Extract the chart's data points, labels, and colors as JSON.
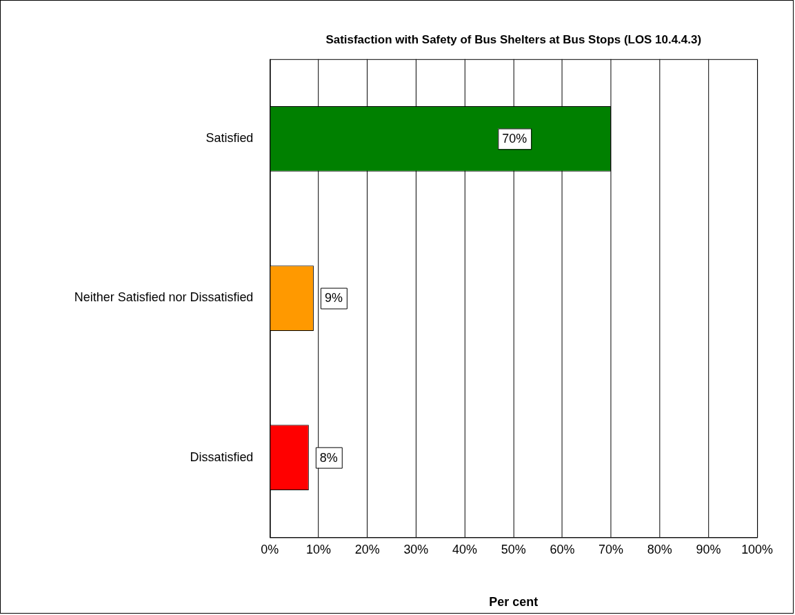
{
  "chart_data": {
    "type": "bar",
    "orientation": "horizontal",
    "title": "Satisfaction with Safety of Bus Shelters at Bus Stops (LOS 10.4.4.3)",
    "xlabel": "Per cent",
    "categories": [
      "Satisfied",
      "Neither Satisfied nor Dissatisfied",
      "Dissatisfied"
    ],
    "values": [
      70,
      9,
      8
    ],
    "colors": [
      "#008000",
      "#ff9900",
      "#ff0000"
    ],
    "value_labels": [
      "70%",
      "9%",
      "8%"
    ],
    "xlim": [
      0,
      100
    ],
    "xticks": [
      {
        "value": 0,
        "label": "0%"
      },
      {
        "value": 10,
        "label": "10%"
      },
      {
        "value": 20,
        "label": "20%"
      },
      {
        "value": 30,
        "label": "30%"
      },
      {
        "value": 40,
        "label": "40%"
      },
      {
        "value": 50,
        "label": "50%"
      },
      {
        "value": 60,
        "label": "60%"
      },
      {
        "value": 70,
        "label": "70%"
      },
      {
        "value": 80,
        "label": "80%"
      },
      {
        "value": 90,
        "label": "90%"
      },
      {
        "value": 100,
        "label": "100%"
      }
    ],
    "grid": "x",
    "legend": false
  }
}
